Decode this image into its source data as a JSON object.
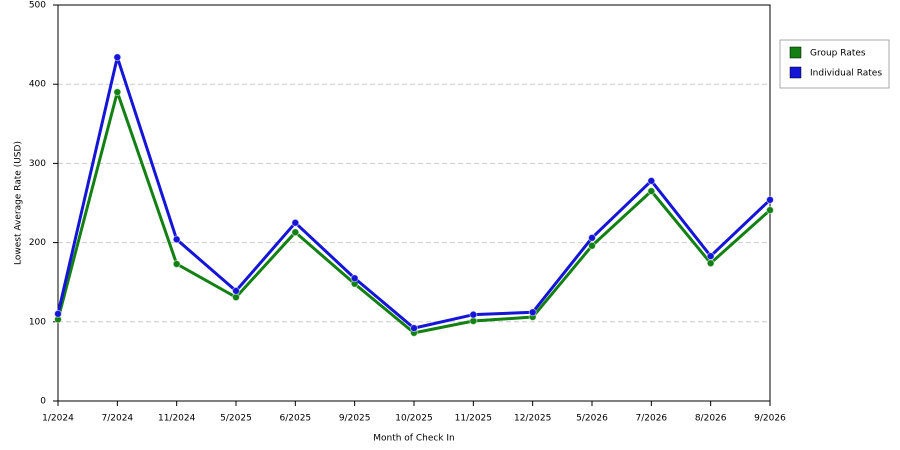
{
  "chart_data": {
    "type": "line",
    "x_label": "Month of Check In",
    "y_label": "Lowest Average Rate (USD)",
    "categories": [
      "1/2024",
      "7/2024",
      "11/2024",
      "5/2025",
      "6/2025",
      "9/2025",
      "10/2025",
      "11/2025",
      "12/2025",
      "5/2026",
      "7/2026",
      "8/2026",
      "9/2026"
    ],
    "series": [
      {
        "name": "Group Rates",
        "color": "#138013",
        "values": [
          103,
          390,
          173,
          131,
          213,
          148,
          86,
          101,
          106,
          196,
          265,
          174,
          241
        ]
      },
      {
        "name": "Individual Rates",
        "color": "#1515d8",
        "values": [
          110,
          434,
          204,
          139,
          225,
          155,
          92,
          109,
          112,
          206,
          278,
          183,
          254
        ]
      }
    ],
    "ylim": [
      0,
      500
    ],
    "yticks": [
      0,
      100,
      200,
      300,
      400,
      500
    ],
    "grid": true,
    "legend": "right"
  }
}
